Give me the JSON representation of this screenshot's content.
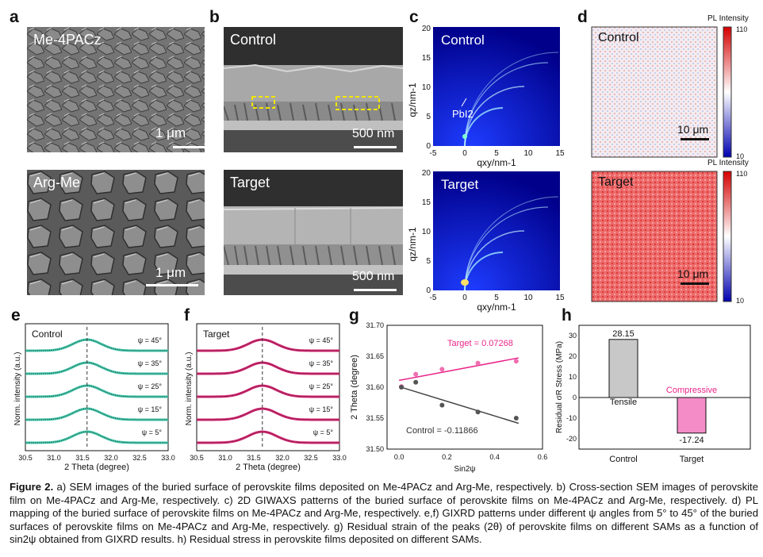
{
  "panel_labels": {
    "a": "a",
    "b": "b",
    "c": "c",
    "d": "d",
    "e": "e",
    "f": "f",
    "g": "g",
    "h": "h"
  },
  "a": {
    "top_label": "Me-4PACz",
    "bottom_label": "Arg-Me",
    "top_scale": "1 μm",
    "bottom_scale": "1 μm"
  },
  "b": {
    "top_label": "Control",
    "bottom_label": "Target",
    "top_scale": "500 nm",
    "bottom_scale": "500 nm"
  },
  "c": {
    "top_label": "Control",
    "bottom_label": "Target",
    "peak_label": "PbI2",
    "xlabel": "qxy/nm-1",
    "ylabel": "qz/nm-1",
    "xticks": [
      "-5",
      "0",
      "5",
      "10",
      "15"
    ],
    "yticks": [
      "0",
      "5",
      "10",
      "15",
      "20"
    ]
  },
  "d": {
    "top_label": "Control",
    "bottom_label": "Target",
    "colorbar_title": "PL Intensity",
    "cb_max": "110",
    "cb_min": "10",
    "scale": "10 μm"
  },
  "e": {
    "title": "Control",
    "xlabel": "2 Theta (degree)",
    "ylabel": "Norm. intensity (a.u.)",
    "xticks": [
      "30.5",
      "31.0",
      "31.5",
      "32.0",
      "32.5",
      "33.0"
    ],
    "psi_labels": [
      "ψ = 45°",
      "ψ = 35°",
      "ψ = 25°",
      "ψ = 15°",
      "ψ = 5°"
    ]
  },
  "f": {
    "title": "Target",
    "xlabel": "2 Theta (degree)",
    "ylabel": "Norm. intensity (a.u.)",
    "xticks": [
      "30.5",
      "31.0",
      "31.5",
      "32.0",
      "32.5",
      "33.0"
    ],
    "psi_labels": [
      "ψ = 45°",
      "ψ = 35°",
      "ψ = 25°",
      "ψ = 15°",
      "ψ = 5°"
    ]
  },
  "g": {
    "xlabel": "Sin2ψ",
    "ylabel": "2 Theta (degree)",
    "target_label": "Target = 0.07268",
    "control_label": "Control = -0.11866",
    "xticks": [
      "0.0",
      "0.2",
      "0.4",
      "0.6"
    ],
    "yticks": [
      "31.70",
      "31.65",
      "31.60",
      "31.55",
      "31.50"
    ]
  },
  "h": {
    "ylabel": "Residual σR Stress (MPa)",
    "xticks": [
      "Control",
      "Target"
    ],
    "yticks": [
      "30",
      "20",
      "10",
      "0",
      "-10",
      "-20"
    ],
    "control_value_label": "28.15",
    "target_value_label": "-17.24",
    "tensile_label": "Tensile",
    "compressive_label": "Compressive"
  },
  "chart_data": [
    {
      "type": "line",
      "panel": "e",
      "title": "Control",
      "xlabel": "2 Theta (degree)",
      "ylabel": "Norm. intensity (a.u.)",
      "xlim": [
        30.5,
        33.0
      ],
      "series": [
        {
          "name": "ψ = 45°",
          "peak": 31.58
        },
        {
          "name": "ψ = 35°",
          "peak": 31.58
        },
        {
          "name": "ψ = 25°",
          "peak": 31.58
        },
        {
          "name": "ψ = 15°",
          "peak": 31.58
        },
        {
          "name": "ψ = 5°",
          "peak": 31.58
        }
      ]
    },
    {
      "type": "line",
      "panel": "f",
      "title": "Target",
      "xlabel": "2 Theta (degree)",
      "ylabel": "Norm. intensity (a.u.)",
      "xlim": [
        30.5,
        33.0
      ],
      "series": [
        {
          "name": "ψ = 45°",
          "peak": 31.65
        },
        {
          "name": "ψ = 35°",
          "peak": 31.65
        },
        {
          "name": "ψ = 25°",
          "peak": 31.65
        },
        {
          "name": "ψ = 15°",
          "peak": 31.65
        },
        {
          "name": "ψ = 5°",
          "peak": 31.65
        }
      ]
    },
    {
      "type": "scatter",
      "panel": "g",
      "xlabel": "Sin2ψ",
      "ylabel": "2 Theta (degree)",
      "xlim": [
        -0.05,
        0.6
      ],
      "ylim": [
        31.5,
        31.7
      ],
      "series": [
        {
          "name": "Target",
          "color": "#e8258a",
          "x": [
            0.01,
            0.07,
            0.18,
            0.33,
            0.49
          ],
          "y": [
            31.601,
            31.621,
            31.629,
            31.639,
            31.642
          ],
          "fit_slope": 0.07268,
          "fit_intercept": 31.611
        },
        {
          "name": "Control",
          "color": "#444444",
          "x": [
            0.01,
            0.07,
            0.18,
            0.33,
            0.49
          ],
          "y": [
            31.6,
            31.608,
            31.571,
            31.56,
            31.55
          ],
          "fit_slope": -0.11866,
          "fit_intercept": 31.601
        }
      ]
    },
    {
      "type": "bar",
      "panel": "h",
      "categories": [
        "Control",
        "Target"
      ],
      "values": [
        28.15,
        -17.24
      ],
      "ylabel": "Residual σR Stress (MPa)",
      "ylim": [
        -25,
        35
      ],
      "colors": [
        "#c8c8c8",
        "#f48cc8"
      ]
    }
  ],
  "caption": {
    "lead": "Figure 2.",
    "text": "a) SEM images of the buried surface of perovskite films deposited on Me-4PACz and Arg-Me, respectively. b) Cross-section SEM images of perovskite film on Me-4PACz and Arg-Me, respectively. c) 2D GIWAXS patterns of the buried surface of perovskite films on Me-4PACz and Arg-Me, respectively. d) PL mapping of the buried surface of perovskite films on Me-4PACz and Arg-Me, respectively. e,f) GIXRD patterns under different ψ angles from 5° to 45° of the buried surfaces of perovskite films on Me-4PACz and Arg-Me, respectively. g) Residual strain of the peaks (2θ) of perovskite films on different SAMs as a function of sin2ψ obtained from GIXRD results. h) Residual stress in perovskite films deposited on different SAMs."
  }
}
